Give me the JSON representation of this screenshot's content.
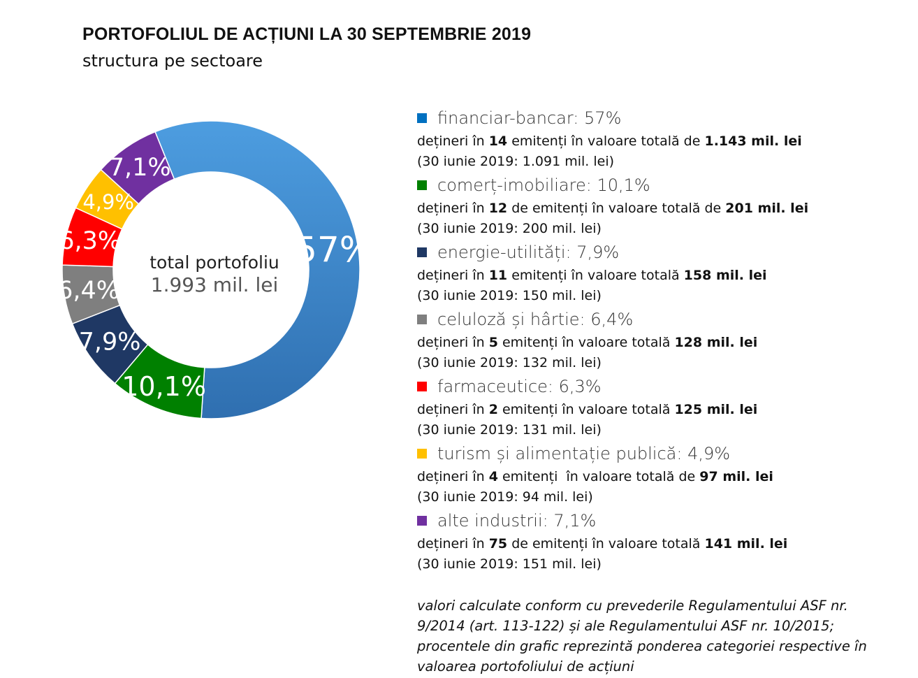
{
  "title": "PORTOFOLIUL DE ACȚIUNI LA 30 SEPTEMBRIE 2019",
  "subtitle": "structura pe sectoare",
  "center": {
    "title": "total portofoliu",
    "value": "1.993 mil. lei"
  },
  "chart_data": {
    "type": "pie",
    "donut": true,
    "title": "PORTOFOLIUL DE ACȚIUNI LA 30 SEPTEMBRIE 2019",
    "subtitle": "structura pe sectoare",
    "categories": [
      "financiar-bancar",
      "comerț-imobiliare",
      "energie-utilități",
      "celuloză și hârtie",
      "farmaceutice",
      "turism și alimentație publică",
      "alte industrii"
    ],
    "values": [
      57,
      10.1,
      7.9,
      6.4,
      6.3,
      4.9,
      7.1
    ],
    "value_labels": [
      "57%",
      "10,1%",
      "7,9%",
      "6,4%",
      "6,3%",
      "4,9%",
      "7,1%"
    ],
    "colors": [
      "#3f8ed6",
      "#008000",
      "#1f3864",
      "#7f7f7f",
      "#ff0000",
      "#ffc000",
      "#7030a0"
    ],
    "legend_placement": "right"
  },
  "legend": [
    {
      "swatch_color": "#0070c0",
      "head": "financiar-bancar: 57%",
      "line1": [
        "dețineri în ",
        "14",
        " emitenți în valoare totală de ",
        "1.143 mil. lei"
      ],
      "line2": "(30 iunie 2019: 1.091 mil. lei)"
    },
    {
      "swatch_color": "#008000",
      "head": "comerț-imobiliare: 10,1%",
      "line1": [
        "dețineri în ",
        "12",
        " de emitenți în valoare totală de ",
        "201 mil. lei"
      ],
      "line2": "(30 iunie 2019: 200 mil. lei)"
    },
    {
      "swatch_color": "#1f3864",
      "head": "energie-utilități: 7,9%",
      "line1": [
        "dețineri în ",
        "11",
        " emitenți în valoare totală ",
        "158 mil. lei"
      ],
      "line2": "(30 iunie 2019: 150 mil. lei)"
    },
    {
      "swatch_color": "#7f7f7f",
      "head": "celuloză și hârtie: 6,4%",
      "line1": [
        "dețineri în ",
        "5",
        " emitenți în valoare totală ",
        "128 mil. lei"
      ],
      "line2": "(30 iunie 2019: 132 mil. lei)"
    },
    {
      "swatch_color": "#ff0000",
      "head": "farmaceutice: 6,3%",
      "line1": [
        "dețineri în ",
        "2",
        " emitenți în valoare totală ",
        "125 mil. lei"
      ],
      "line2": "(30 iunie 2019: 131 mil. lei)"
    },
    {
      "swatch_color": "#ffc000",
      "head": "turism și alimentație publică: 4,9%",
      "line1": [
        "dețineri în ",
        "4",
        " emitenți  în valoare totală de ",
        "97 mil. lei"
      ],
      "line2": "(30 iunie 2019: 94 mil. lei)"
    },
    {
      "swatch_color": "#7030a0",
      "head": "alte industrii: 7,1%",
      "line1": [
        "dețineri în ",
        "75",
        " de emitenți în valoare totală ",
        "141 mil. lei"
      ],
      "line2": "(30 iunie 2019: 151 mil. lei)"
    }
  ],
  "note": "valori calculate conform cu prevederile Regulamentului ASF nr. 9/2014 (art. 113-122) și ale Regulamentului ASF nr. 10/2015; procentele din grafic reprezintă ponderea categoriei respective în valoarea portofoliului de acțiuni"
}
